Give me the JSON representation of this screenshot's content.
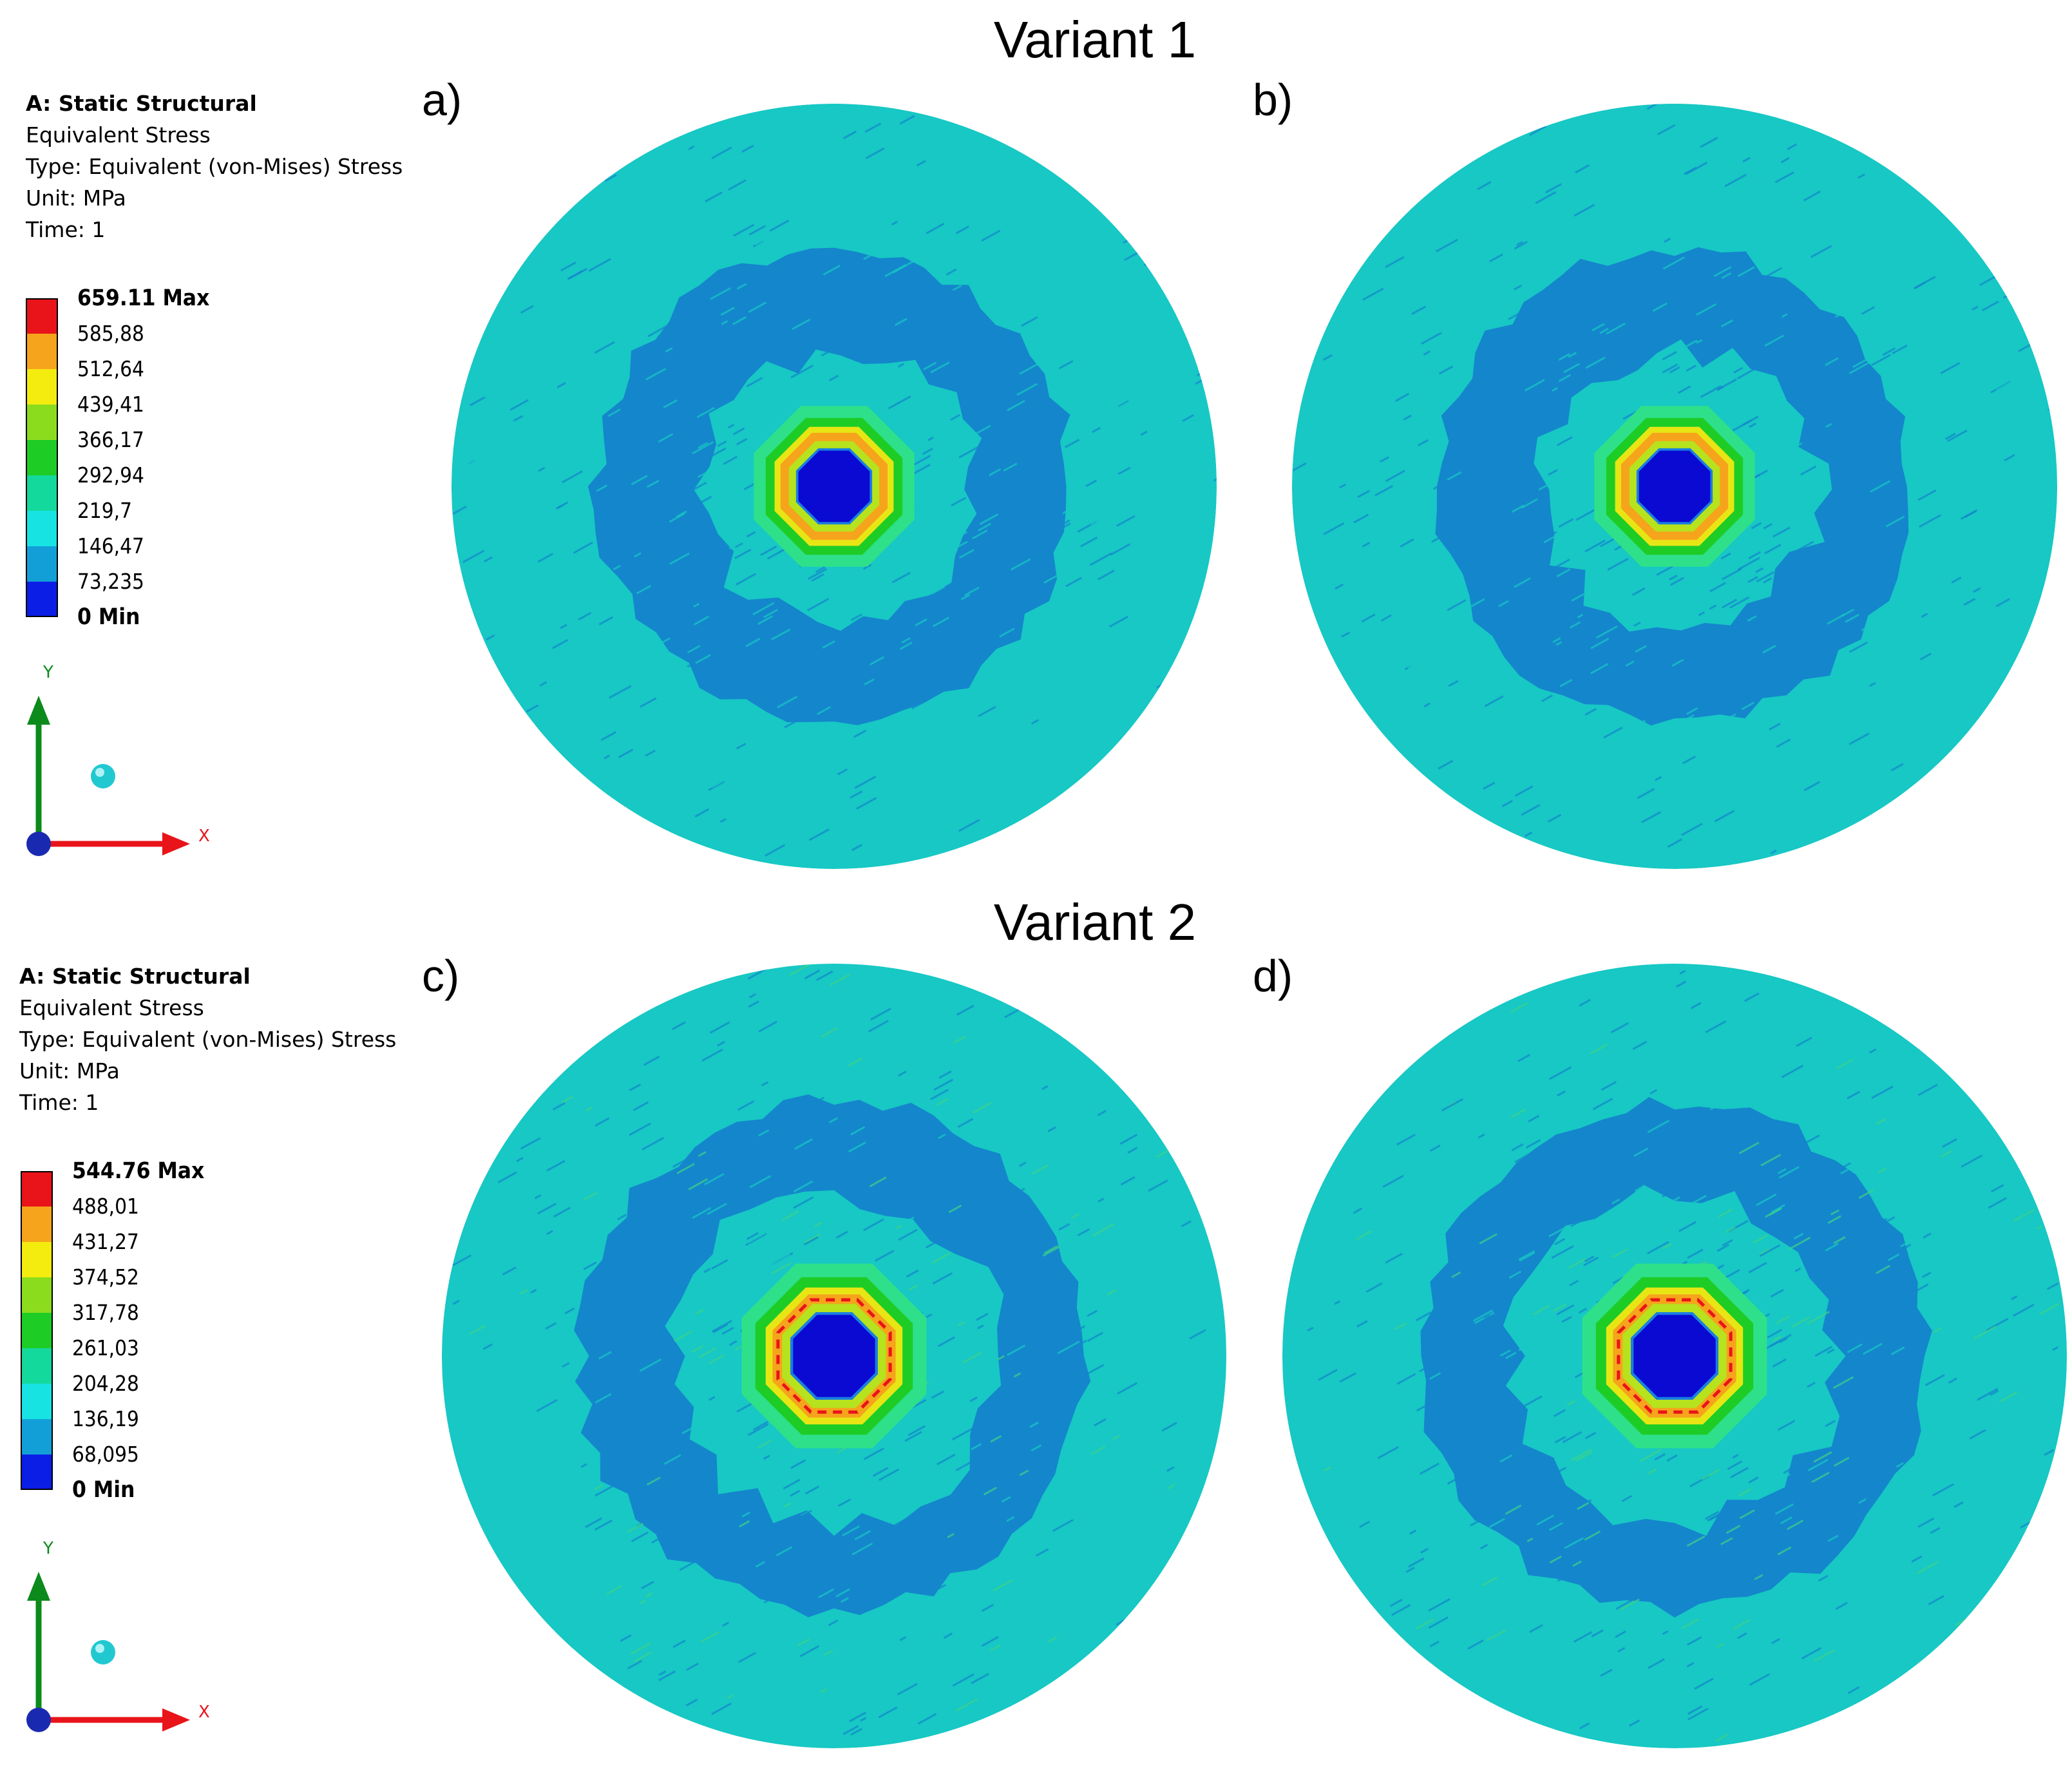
{
  "variants": [
    {
      "title": "Variant 1",
      "legend": {
        "analysis": "A: Static Structural",
        "result": "Equivalent Stress",
        "type": "Type: Equivalent (von-Mises) Stress",
        "unit": "Unit: MPa",
        "time": "Time: 1"
      },
      "scale": [
        "659.11 Max",
        "585,88",
        "512,64",
        "439,41",
        "366,17",
        "292,94",
        "219,7",
        "146,47",
        "73,235",
        "0 Min"
      ],
      "panels": [
        {
          "label": "a)"
        },
        {
          "label": "b)"
        }
      ]
    },
    {
      "title": "Variant 2",
      "legend": {
        "analysis": "A: Static Structural",
        "result": "Equivalent Stress",
        "type": "Type: Equivalent (von-Mises) Stress",
        "unit": "Unit: MPa",
        "time": "Time: 1"
      },
      "scale": [
        "544.76 Max",
        "488,01",
        "431,27",
        "374,52",
        "317,78",
        "261,03",
        "204,28",
        "136,19",
        "68,095",
        "0 Min"
      ],
      "panels": [
        {
          "label": "c)"
        },
        {
          "label": "d)"
        }
      ]
    }
  ],
  "scale_colors": [
    "#e8141a",
    "#f6a41c",
    "#f4ec0e",
    "#8cdc1e",
    "#1ecc26",
    "#14d99c",
    "#17e3e3",
    "#129fd8",
    "#0b1ee6"
  ],
  "axis_labels": {
    "y": "Y",
    "x": "X"
  },
  "colors": {
    "background_field": "#17c8c4",
    "outer_ring": "#1486cc",
    "hole": "#0a0ad2",
    "hot": "#e8141a",
    "warm": "#f6a41c",
    "green": "#1ecc26",
    "axis_y": "#0c8a1c",
    "axis_x": "#e8141a",
    "axis_origin": "#1a2ab0"
  }
}
